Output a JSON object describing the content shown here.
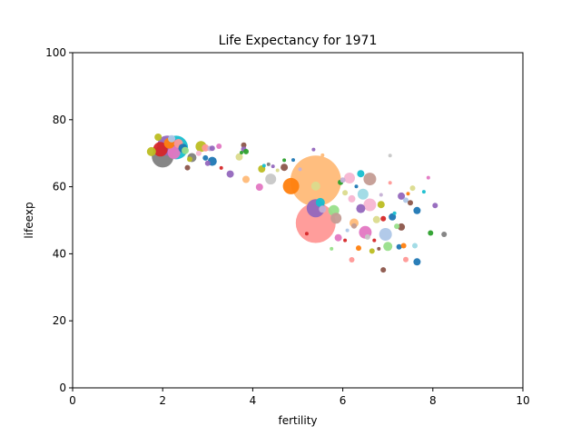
{
  "chart_data": {
    "type": "scatter",
    "title": "Life Expectancy for 1971",
    "xlabel": "fertility",
    "ylabel": "lifeexp",
    "xlim": [
      0,
      10
    ],
    "ylim": [
      0,
      100
    ],
    "xticks": [
      0,
      2,
      4,
      6,
      8,
      10
    ],
    "yticks": [
      0,
      20,
      40,
      60,
      80,
      100
    ],
    "grid": false,
    "legend": "none",
    "size_note": "marker area proportional to population",
    "points": [
      {
        "x": 1.75,
        "y": 70.5,
        "size": 5,
        "color": "#bcbd22"
      },
      {
        "x": 1.9,
        "y": 74.8,
        "size": 4,
        "color": "#bcbd22"
      },
      {
        "x": 1.95,
        "y": 71.2,
        "size": 8,
        "color": "#d62728"
      },
      {
        "x": 2.0,
        "y": 69.0,
        "size": 12,
        "color": "#7f7f7f"
      },
      {
        "x": 2.1,
        "y": 72.3,
        "size": 11,
        "color": "#9467bd"
      },
      {
        "x": 2.15,
        "y": 73.0,
        "size": 6,
        "color": "#ff7f0e"
      },
      {
        "x": 2.2,
        "y": 74.3,
        "size": 4,
        "color": "#aec7e8"
      },
      {
        "x": 2.25,
        "y": 70.2,
        "size": 7,
        "color": "#e377c2"
      },
      {
        "x": 2.3,
        "y": 71.7,
        "size": 13,
        "color": "#17becf"
      },
      {
        "x": 2.35,
        "y": 72.9,
        "size": 5,
        "color": "#ff9896"
      },
      {
        "x": 2.45,
        "y": 71.5,
        "size": 5,
        "color": "#1f77b4"
      },
      {
        "x": 2.5,
        "y": 70.8,
        "size": 4,
        "color": "#98df8a"
      },
      {
        "x": 2.55,
        "y": 65.7,
        "size": 3,
        "color": "#8c564b"
      },
      {
        "x": 2.6,
        "y": 68.2,
        "size": 3,
        "color": "#bcbd22"
      },
      {
        "x": 2.65,
        "y": 68.7,
        "size": 5,
        "color": "#7f7f7f"
      },
      {
        "x": 2.8,
        "y": 70.0,
        "size": 3,
        "color": "#f7b6d2"
      },
      {
        "x": 2.85,
        "y": 72.0,
        "size": 6,
        "color": "#bcbd22"
      },
      {
        "x": 2.95,
        "y": 71.6,
        "size": 4,
        "color": "#ff9896"
      },
      {
        "x": 2.95,
        "y": 68.6,
        "size": 3,
        "color": "#1f77b4"
      },
      {
        "x": 3.0,
        "y": 67.0,
        "size": 3,
        "color": "#9467bd"
      },
      {
        "x": 3.05,
        "y": 71.4,
        "size": 3,
        "color": "#c5b0d5"
      },
      {
        "x": 3.1,
        "y": 67.6,
        "size": 5,
        "color": "#1f77b4"
      },
      {
        "x": 3.1,
        "y": 71.5,
        "size": 3,
        "color": "#9467bd"
      },
      {
        "x": 3.25,
        "y": 72.1,
        "size": 3,
        "color": "#e377c2"
      },
      {
        "x": 3.3,
        "y": 65.6,
        "size": 2,
        "color": "#d62728"
      },
      {
        "x": 3.5,
        "y": 63.8,
        "size": 4,
        "color": "#9467bd"
      },
      {
        "x": 3.7,
        "y": 68.9,
        "size": 4,
        "color": "#dbdb8d"
      },
      {
        "x": 3.75,
        "y": 70.2,
        "size": 2,
        "color": "#2ca02c"
      },
      {
        "x": 3.8,
        "y": 72.4,
        "size": 3,
        "color": "#8c564b"
      },
      {
        "x": 3.8,
        "y": 71.2,
        "size": 3,
        "color": "#9467bd"
      },
      {
        "x": 3.85,
        "y": 70.5,
        "size": 3,
        "color": "#2ca02c"
      },
      {
        "x": 3.85,
        "y": 62.2,
        "size": 4,
        "color": "#ffbb78"
      },
      {
        "x": 4.15,
        "y": 59.9,
        "size": 4,
        "color": "#e377c2"
      },
      {
        "x": 4.2,
        "y": 65.3,
        "size": 4,
        "color": "#bcbd22"
      },
      {
        "x": 4.25,
        "y": 66.3,
        "size": 2,
        "color": "#17becf"
      },
      {
        "x": 4.35,
        "y": 66.7,
        "size": 2,
        "color": "#7f7f7f"
      },
      {
        "x": 4.4,
        "y": 62.3,
        "size": 6,
        "color": "#c7c7c7"
      },
      {
        "x": 4.45,
        "y": 66.1,
        "size": 2,
        "color": "#9467bd"
      },
      {
        "x": 4.55,
        "y": 64.9,
        "size": 2,
        "color": "#dbdb8d"
      },
      {
        "x": 4.7,
        "y": 67.9,
        "size": 2,
        "color": "#2ca02c"
      },
      {
        "x": 4.7,
        "y": 65.8,
        "size": 4,
        "color": "#8c564b"
      },
      {
        "x": 4.85,
        "y": 60.2,
        "size": 9,
        "color": "#ff7f0e"
      },
      {
        "x": 4.9,
        "y": 68.0,
        "size": 2,
        "color": "#1f77b4"
      },
      {
        "x": 5.05,
        "y": 65.2,
        "size": 2,
        "color": "#c5b0d5"
      },
      {
        "x": 5.2,
        "y": 46.0,
        "size": 2,
        "color": "#d62728"
      },
      {
        "x": 5.35,
        "y": 71.1,
        "size": 2,
        "color": "#9467bd"
      },
      {
        "x": 5.4,
        "y": 53.6,
        "size": 10,
        "color": "#9467bd"
      },
      {
        "x": 5.4,
        "y": 49.2,
        "size": 22,
        "color": "#ff9896"
      },
      {
        "x": 5.4,
        "y": 61.7,
        "size": 28,
        "color": "#ffbb78"
      },
      {
        "x": 5.4,
        "y": 60.2,
        "size": 5,
        "color": "#dbdb8d"
      },
      {
        "x": 5.5,
        "y": 55.3,
        "size": 5,
        "color": "#17becf"
      },
      {
        "x": 5.55,
        "y": 53.3,
        "size": 4,
        "color": "#c5b0d5"
      },
      {
        "x": 5.55,
        "y": 69.4,
        "size": 2,
        "color": "#ffbb78"
      },
      {
        "x": 5.75,
        "y": 41.5,
        "size": 2,
        "color": "#98df8a"
      },
      {
        "x": 5.8,
        "y": 52.9,
        "size": 6,
        "color": "#98df8a"
      },
      {
        "x": 5.85,
        "y": 50.6,
        "size": 6,
        "color": "#c49c94"
      },
      {
        "x": 5.9,
        "y": 44.8,
        "size": 4,
        "color": "#e377c2"
      },
      {
        "x": 5.95,
        "y": 61.3,
        "size": 3,
        "color": "#2ca02c"
      },
      {
        "x": 6.0,
        "y": 62.0,
        "size": 3,
        "color": "#c5b0d5"
      },
      {
        "x": 6.05,
        "y": 58.2,
        "size": 3,
        "color": "#dbdb8d"
      },
      {
        "x": 6.05,
        "y": 44.0,
        "size": 2,
        "color": "#d62728"
      },
      {
        "x": 6.1,
        "y": 47.0,
        "size": 2,
        "color": "#aec7e8"
      },
      {
        "x": 6.15,
        "y": 62.6,
        "size": 6,
        "color": "#f7b6d2"
      },
      {
        "x": 6.2,
        "y": 56.4,
        "size": 4,
        "color": "#f7b6d2"
      },
      {
        "x": 6.2,
        "y": 38.2,
        "size": 3,
        "color": "#ff9896"
      },
      {
        "x": 6.25,
        "y": 49.2,
        "size": 5,
        "color": "#ffbb78"
      },
      {
        "x": 6.25,
        "y": 48.3,
        "size": 3,
        "color": "#c49c94"
      },
      {
        "x": 6.3,
        "y": 60.1,
        "size": 2,
        "color": "#1f77b4"
      },
      {
        "x": 6.35,
        "y": 41.7,
        "size": 3,
        "color": "#ff7f0e"
      },
      {
        "x": 6.4,
        "y": 53.5,
        "size": 5,
        "color": "#9467bd"
      },
      {
        "x": 6.4,
        "y": 63.9,
        "size": 4,
        "color": "#17becf"
      },
      {
        "x": 6.45,
        "y": 57.8,
        "size": 6,
        "color": "#9edae5"
      },
      {
        "x": 6.5,
        "y": 46.4,
        "size": 7,
        "color": "#e377c2"
      },
      {
        "x": 6.55,
        "y": 45.0,
        "size": 3,
        "color": "#c7c7c7"
      },
      {
        "x": 6.6,
        "y": 54.6,
        "size": 7,
        "color": "#f7b6d2"
      },
      {
        "x": 6.6,
        "y": 62.3,
        "size": 7,
        "color": "#c49c94"
      },
      {
        "x": 6.65,
        "y": 40.8,
        "size": 3,
        "color": "#bcbd22"
      },
      {
        "x": 6.7,
        "y": 44.0,
        "size": 2,
        "color": "#d62728"
      },
      {
        "x": 6.75,
        "y": 50.2,
        "size": 4,
        "color": "#dbdb8d"
      },
      {
        "x": 6.8,
        "y": 41.5,
        "size": 2,
        "color": "#8c564b"
      },
      {
        "x": 6.85,
        "y": 54.7,
        "size": 4,
        "color": "#bcbd22"
      },
      {
        "x": 6.85,
        "y": 57.6,
        "size": 2,
        "color": "#c5b0d5"
      },
      {
        "x": 6.9,
        "y": 35.2,
        "size": 3,
        "color": "#8c564b"
      },
      {
        "x": 6.9,
        "y": 50.5,
        "size": 3,
        "color": "#d62728"
      },
      {
        "x": 6.95,
        "y": 45.8,
        "size": 7,
        "color": "#aec7e8"
      },
      {
        "x": 7.0,
        "y": 42.2,
        "size": 5,
        "color": "#98df8a"
      },
      {
        "x": 7.05,
        "y": 61.2,
        "size": 2,
        "color": "#ff9896"
      },
      {
        "x": 7.05,
        "y": 69.3,
        "size": 2,
        "color": "#c7c7c7"
      },
      {
        "x": 7.1,
        "y": 51.0,
        "size": 4,
        "color": "#1f77b4"
      },
      {
        "x": 7.15,
        "y": 52.1,
        "size": 2,
        "color": "#17becf"
      },
      {
        "x": 7.2,
        "y": 48.2,
        "size": 3,
        "color": "#98df8a"
      },
      {
        "x": 7.25,
        "y": 42.1,
        "size": 3,
        "color": "#1f77b4"
      },
      {
        "x": 7.3,
        "y": 57.2,
        "size": 4,
        "color": "#9467bd"
      },
      {
        "x": 7.3,
        "y": 48.0,
        "size": 4,
        "color": "#8c564b"
      },
      {
        "x": 7.35,
        "y": 42.4,
        "size": 3,
        "color": "#ff7f0e"
      },
      {
        "x": 7.4,
        "y": 38.3,
        "size": 3,
        "color": "#ff9896"
      },
      {
        "x": 7.4,
        "y": 56.0,
        "size": 3,
        "color": "#aec7e8"
      },
      {
        "x": 7.45,
        "y": 57.9,
        "size": 2,
        "color": "#ff7f0e"
      },
      {
        "x": 7.5,
        "y": 55.2,
        "size": 3,
        "color": "#8c564b"
      },
      {
        "x": 7.55,
        "y": 59.6,
        "size": 3,
        "color": "#dbdb8d"
      },
      {
        "x": 7.6,
        "y": 42.4,
        "size": 3,
        "color": "#9edae5"
      },
      {
        "x": 7.65,
        "y": 37.6,
        "size": 4,
        "color": "#1f77b4"
      },
      {
        "x": 7.65,
        "y": 52.9,
        "size": 4,
        "color": "#1f77b4"
      },
      {
        "x": 7.8,
        "y": 58.5,
        "size": 2,
        "color": "#17becf"
      },
      {
        "x": 7.9,
        "y": 62.7,
        "size": 2,
        "color": "#e377c2"
      },
      {
        "x": 7.95,
        "y": 46.2,
        "size": 3,
        "color": "#2ca02c"
      },
      {
        "x": 8.05,
        "y": 54.4,
        "size": 3,
        "color": "#9467bd"
      },
      {
        "x": 8.25,
        "y": 45.8,
        "size": 3,
        "color": "#7f7f7f"
      }
    ]
  }
}
